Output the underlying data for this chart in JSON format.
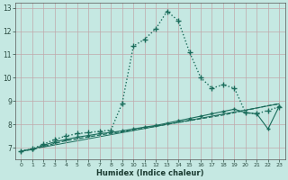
{
  "xlabel": "Humidex (Indice chaleur)",
  "bg_color": "#c5e8e2",
  "grid_color": "#c0a8aa",
  "line_color": "#1a6b5a",
  "xlim": [
    -0.5,
    23.5
  ],
  "ylim": [
    6.5,
    13.2
  ],
  "xticks": [
    0,
    1,
    2,
    3,
    4,
    5,
    6,
    7,
    8,
    9,
    10,
    11,
    12,
    13,
    14,
    15,
    16,
    17,
    18,
    19,
    20,
    21,
    22,
    23
  ],
  "yticks": [
    7,
    8,
    9,
    10,
    11,
    12,
    13
  ],
  "series": [
    {
      "x": [
        0,
        1,
        2,
        3,
        4,
        5,
        6,
        7,
        8,
        9,
        10,
        11,
        12,
        13,
        14,
        15,
        16,
        17,
        18,
        19,
        20,
        21,
        22,
        23
      ],
      "y": [
        6.85,
        6.95,
        7.15,
        7.35,
        7.5,
        7.6,
        7.65,
        7.7,
        7.75,
        8.9,
        11.35,
        11.65,
        12.1,
        12.85,
        12.45,
        11.1,
        10.0,
        9.55,
        9.7,
        9.55,
        8.5,
        8.45,
        8.6,
        8.75
      ],
      "style": ":",
      "marker": "+",
      "markersize": 4,
      "linewidth": 1.0,
      "zorder": 4
    },
    {
      "x": [
        0,
        1,
        2,
        3,
        4,
        5,
        6,
        7,
        8,
        9,
        10,
        11,
        12,
        13,
        14,
        15,
        16,
        17,
        18,
        19,
        20,
        21,
        22,
        23
      ],
      "y": [
        6.85,
        6.93,
        7.1,
        7.25,
        7.35,
        7.45,
        7.52,
        7.6,
        7.65,
        7.72,
        7.8,
        7.88,
        7.95,
        8.05,
        8.15,
        8.25,
        8.35,
        8.45,
        8.55,
        8.65,
        8.5,
        8.45,
        7.8,
        8.78
      ],
      "style": "-",
      "marker": "+",
      "markersize": 3,
      "linewidth": 0.8,
      "zorder": 3
    },
    {
      "x": [
        0,
        1,
        2,
        3,
        4,
        5,
        6,
        7,
        8,
        9,
        10,
        11,
        12,
        13,
        14,
        15,
        16,
        17,
        18,
        19,
        20,
        21,
        22,
        23
      ],
      "y": [
        6.85,
        6.92,
        7.05,
        7.18,
        7.3,
        7.38,
        7.46,
        7.54,
        7.62,
        7.68,
        7.76,
        7.84,
        7.92,
        8.0,
        8.08,
        8.16,
        8.24,
        8.32,
        8.4,
        8.5,
        8.6,
        8.7,
        8.8,
        8.88
      ],
      "style": "--",
      "marker": null,
      "markersize": 0,
      "linewidth": 0.9,
      "zorder": 2
    },
    {
      "x": [
        0,
        23
      ],
      "y": [
        6.85,
        8.88
      ],
      "style": "-",
      "marker": null,
      "markersize": 0,
      "linewidth": 0.7,
      "zorder": 1
    }
  ]
}
